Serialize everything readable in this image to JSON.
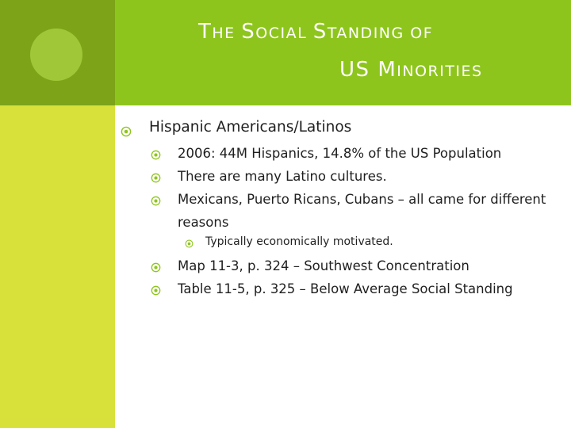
{
  "slide": {
    "title_line1_first_letter": "T",
    "title_line1_rest_a": "HE ",
    "title_line1_s1": "S",
    "title_line1_rest_b": "OCIAL ",
    "title_line1_s2": "S",
    "title_line1_rest_c": "TANDING OF",
    "title_line2_a": "US ",
    "title_line2_m": "M",
    "title_line2_b": "INORITIES",
    "bullets": [
      {
        "level": 1,
        "text": "Hispanic Americans/Latinos"
      },
      {
        "level": 2,
        "text": "2006: 44M Hispanics, 14.8% of the US Population"
      },
      {
        "level": 2,
        "text": "There are many Latino cultures."
      },
      {
        "level": 2,
        "text": "Mexicans, Puerto Ricans, Cubans – all came for different"
      },
      {
        "level": 2,
        "text": "reasons",
        "continuation": true
      },
      {
        "level": 3,
        "text": "Typically economically motivated."
      },
      {
        "level": 2,
        "text": "Map 11-3, p. 324 – Southwest Concentration"
      },
      {
        "level": 2,
        "text": "Table 11-5, p. 325 – Below Average Social Standing"
      }
    ],
    "bullet_icon": "circle-target-icon",
    "colors": {
      "header": "#8ec51d",
      "left_bar_top": "#7da318",
      "left_bar": "#d7e13a",
      "circle": "#a0c738",
      "bullet": "#8ec51d",
      "text": "#1f1f1f"
    }
  }
}
